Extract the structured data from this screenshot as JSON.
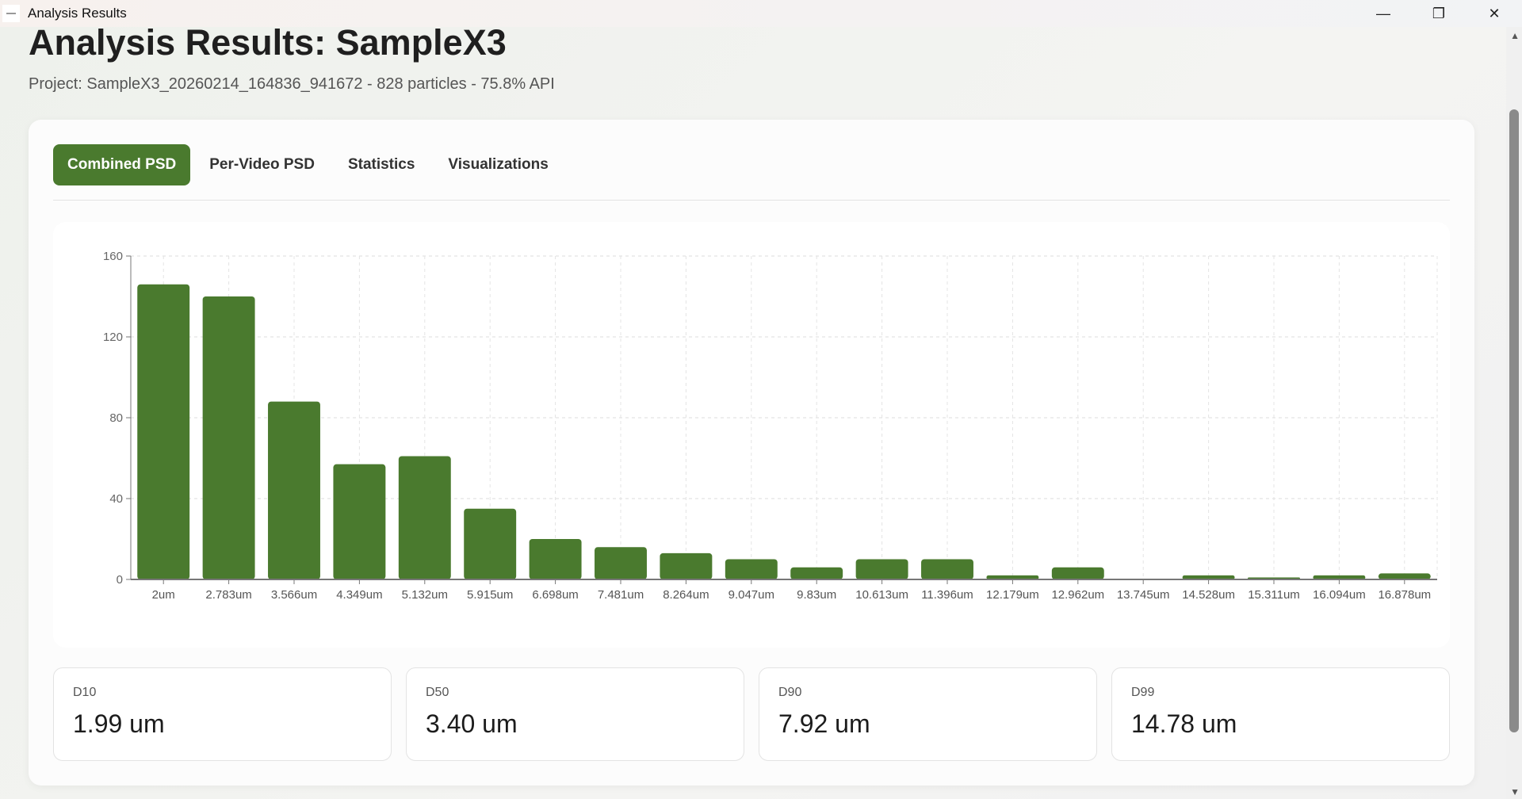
{
  "window": {
    "title": "Analysis Results",
    "controls": {
      "minimize": "—",
      "restore": "❐",
      "close": "✕"
    }
  },
  "header": {
    "title": "Analysis Results: SampleX3",
    "subtitle": "Project: SampleX3_20260214_164836_941672 - 828 particles - 75.8% API"
  },
  "tabs": [
    {
      "label": "Combined PSD",
      "active": true
    },
    {
      "label": "Per-Video PSD"
    },
    {
      "label": "Statistics"
    },
    {
      "label": "Visualizations"
    }
  ],
  "colors": {
    "accent": "#4a7a2e",
    "bar": "#4a7a2e"
  },
  "chart_data": {
    "type": "bar",
    "categories": [
      "2um",
      "2.783um",
      "3.566um",
      "4.349um",
      "5.132um",
      "5.915um",
      "6.698um",
      "7.481um",
      "8.264um",
      "9.047um",
      "9.83um",
      "10.613um",
      "11.396um",
      "12.179um",
      "12.962um",
      "13.745um",
      "14.528um",
      "15.311um",
      "16.094um",
      "16.878um"
    ],
    "values": [
      146,
      140,
      88,
      57,
      61,
      35,
      20,
      16,
      13,
      10,
      6,
      10,
      10,
      2,
      6,
      0,
      2,
      1,
      2,
      3
    ],
    "yticks": [
      0,
      40,
      80,
      120,
      160
    ],
    "ylim": [
      0,
      160
    ],
    "grid": true
  },
  "stats": [
    {
      "label": "D10",
      "value": "1.99 um"
    },
    {
      "label": "D50",
      "value": "3.40 um"
    },
    {
      "label": "D90",
      "value": "7.92 um"
    },
    {
      "label": "D99",
      "value": "14.78 um"
    }
  ]
}
